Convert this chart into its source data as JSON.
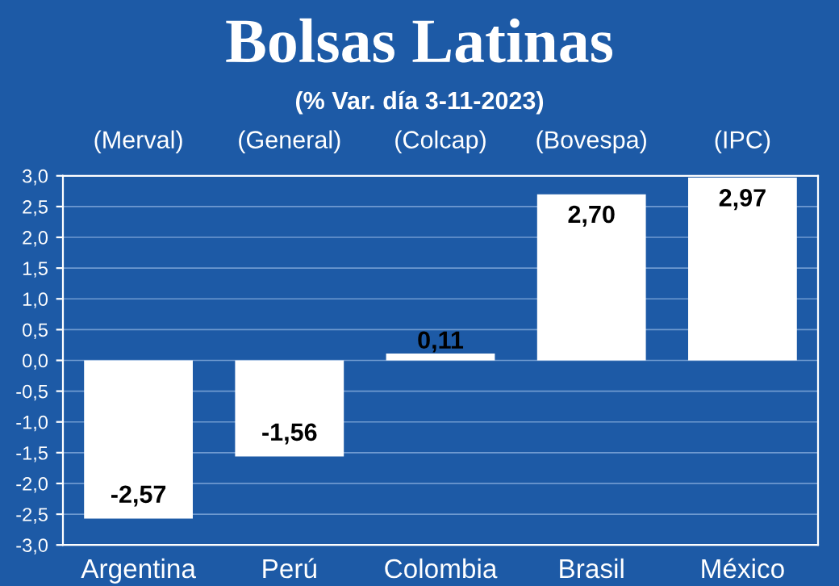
{
  "chart_data": {
    "type": "bar",
    "title": "Bolsas Latinas",
    "subtitle": "(% Var. día 3-11-2023)",
    "categories": [
      "Argentina",
      "Perú",
      "Colombia",
      "Brasil",
      "México"
    ],
    "values": [
      -2.57,
      -1.56,
      0.11,
      2.7,
      2.97
    ],
    "value_labels": [
      "-2,57",
      "-1,56",
      "0,11",
      "2,70",
      "2,97"
    ],
    "color": "#ffffff",
    "annotations": [
      "(Merval)",
      "(General)",
      "(Colcap)",
      "(Bovespa)",
      "(IPC)"
    ],
    "ylim": [
      -3.0,
      3.0
    ],
    "yticks": [
      {
        "value": -3.0,
        "label": "-3,0"
      },
      {
        "value": -2.5,
        "label": "-2,5"
      },
      {
        "value": -2.0,
        "label": "-2,0"
      },
      {
        "value": -1.5,
        "label": "-1,5"
      },
      {
        "value": -1.0,
        "label": "-1,0"
      },
      {
        "value": -0.5,
        "label": "-0,5"
      },
      {
        "value": 0.0,
        "label": "0,0"
      },
      {
        "value": 0.5,
        "label": "0,5"
      },
      {
        "value": 1.0,
        "label": "1,0"
      },
      {
        "value": 1.5,
        "label": "1,5"
      },
      {
        "value": 2.0,
        "label": "2,0"
      },
      {
        "value": 2.5,
        "label": "2,5"
      },
      {
        "value": 3.0,
        "label": "3,0"
      }
    ],
    "grid": "y"
  }
}
